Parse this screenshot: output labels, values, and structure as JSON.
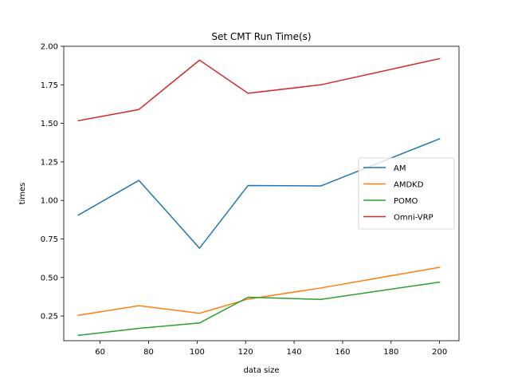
{
  "chart_data": {
    "type": "line",
    "title": "Set CMT Run Time(s)",
    "xlabel": "data size",
    "ylabel": "times",
    "xlim": [
      45,
      208
    ],
    "ylim": [
      0.09,
      2.0
    ],
    "xticks": [
      60,
      80,
      100,
      120,
      140,
      160,
      180,
      200
    ],
    "yticks": [
      0.25,
      0.5,
      0.75,
      1.0,
      1.25,
      1.5,
      1.75,
      2.0
    ],
    "ytick_labels": [
      "0.25",
      "0.50",
      "0.75",
      "1.00",
      "1.25",
      "1.50",
      "1.75",
      "2.00"
    ],
    "grid": false,
    "legend_position": "center-right",
    "x": [
      51,
      76,
      101,
      121,
      151,
      200
    ],
    "series": [
      {
        "name": "AM",
        "color": "#1f77b4",
        "values": [
          0.905,
          1.13,
          0.69,
          1.097,
          1.094,
          1.4
        ]
      },
      {
        "name": "AMDKD",
        "color": "#ff7f0e",
        "values": [
          0.255,
          0.317,
          0.268,
          0.36,
          0.432,
          0.566
        ]
      },
      {
        "name": "POMO",
        "color": "#2ca02c",
        "values": [
          0.125,
          0.17,
          0.205,
          0.372,
          0.358,
          0.47
        ]
      },
      {
        "name": "Omni-VRP",
        "color": "#d62728",
        "values": [
          1.517,
          1.59,
          1.91,
          1.695,
          1.75,
          1.92
        ]
      }
    ]
  }
}
